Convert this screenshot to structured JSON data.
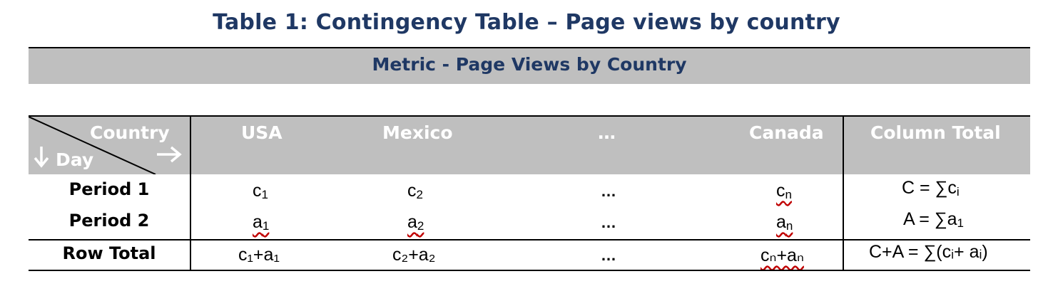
{
  "title": "Table 1: Contingency Table – Page views by country",
  "metric_bar": "Metric - Page Views by Country",
  "corner": {
    "country": "Country",
    "day": "Day"
  },
  "columns": [
    "USA",
    "Mexico",
    "…",
    "Canada",
    "Column Total"
  ],
  "rows": [
    {
      "label": "Period 1",
      "cells": [
        [
          "c",
          "1"
        ],
        [
          "c",
          "2"
        ],
        [
          "…",
          ""
        ],
        [
          "c",
          "n"
        ]
      ],
      "total": [
        "C = ∑c",
        "i"
      ]
    },
    {
      "label": "Period 2",
      "cells": [
        [
          "a",
          "1"
        ],
        [
          "a",
          "2"
        ],
        [
          "…",
          ""
        ],
        [
          "a",
          "n"
        ]
      ],
      "total": [
        "A = ∑a",
        "1"
      ]
    }
  ],
  "row_total": {
    "label": "Row Total",
    "cells": [
      "c₁+a₁",
      "c₂+a₂",
      "…",
      "cₙ+aₙ"
    ],
    "total": "C+A = ∑(cᵢ+ aᵢ)"
  }
}
